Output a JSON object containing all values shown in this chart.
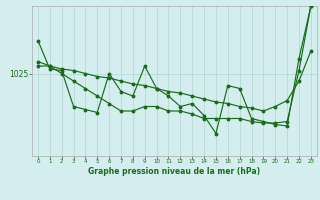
{
  "background_color": "#d4eef0",
  "line_color": "#1a6b1a",
  "grid_color": "#b8d8d8",
  "title": "Graphe pression niveau de la mer (hPa)",
  "ylabel_text": "1025",
  "x_ticks": [
    0,
    1,
    2,
    3,
    4,
    5,
    6,
    7,
    8,
    9,
    10,
    11,
    12,
    13,
    14,
    15,
    16,
    17,
    18,
    19,
    20,
    21,
    22,
    23
  ],
  "series1": [
    1027.2,
    1025.3,
    1025.2,
    1022.8,
    1022.6,
    1022.4,
    1025.0,
    1023.8,
    1023.5,
    1025.5,
    1024.0,
    1023.5,
    1022.8,
    1023.0,
    1022.2,
    1021.0,
    1024.2,
    1024.0,
    1022.0,
    1021.8,
    1021.6,
    1021.5,
    1026.0,
    1029.5
  ],
  "series2": [
    1025.5,
    1025.5,
    1025.3,
    1025.2,
    1025.0,
    1024.8,
    1024.7,
    1024.5,
    1024.3,
    1024.2,
    1024.0,
    1023.8,
    1023.7,
    1023.5,
    1023.3,
    1023.1,
    1023.0,
    1022.8,
    1022.7,
    1022.5,
    1022.8,
    1023.2,
    1024.5,
    1026.5
  ],
  "series3": [
    1025.8,
    1025.5,
    1025.0,
    1024.5,
    1024.0,
    1023.5,
    1023.0,
    1022.5,
    1022.5,
    1022.8,
    1022.8,
    1022.5,
    1022.5,
    1022.3,
    1022.0,
    1022.0,
    1022.0,
    1022.0,
    1021.8,
    1021.7,
    1021.7,
    1021.8,
    1025.2,
    1029.5
  ],
  "ylim": [
    1019.5,
    1029.5
  ],
  "ref_val": 1025.0,
  "xlim_min": -0.5,
  "xlim_max": 23.5
}
